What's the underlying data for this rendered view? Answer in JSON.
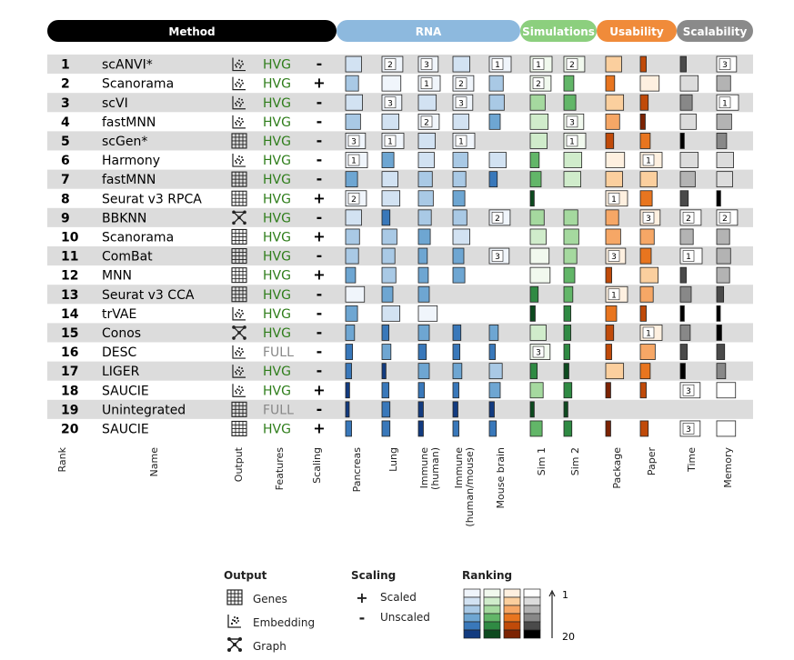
{
  "chart_data": {
    "type": "heatmap",
    "title": "",
    "headers": {
      "method": "Method",
      "rna": "RNA",
      "simulations": "Simulations",
      "usability": "Usability",
      "scalability": "Scalability"
    },
    "header_colors": {
      "method": "#000000",
      "rna": "#8db9de",
      "simulations": "#8ccf7e",
      "usability": "#f08b3a",
      "scalability": "#8a8a8a"
    },
    "column_labels": {
      "rank": "Rank",
      "name": "Name",
      "output": "Output",
      "features": "Features",
      "scaling": "Scaling",
      "pancreas": "Pancreas",
      "lung": "Lung",
      "immune_human": [
        "Immune",
        "(human)"
      ],
      "immune_hm": [
        "Immune",
        "(human/mouse)"
      ],
      "mouse_brain": "Mouse brain",
      "sim1": "Sim 1",
      "sim2": "Sim 2",
      "package": "Package",
      "paper": "Paper",
      "time": "Time",
      "memory": "Memory"
    },
    "palettes": {
      "blue": [
        "#f0f5fb",
        "#d2e2f2",
        "#a9c9e5",
        "#6ea6d2",
        "#3978ba",
        "#123b80"
      ],
      "green": [
        "#f1f9ee",
        "#d0eccb",
        "#a5d99f",
        "#62b668",
        "#2f8a43",
        "#0d4a1f"
      ],
      "orange": [
        "#fef0e0",
        "#fbcf9e",
        "#f6a766",
        "#e8751f",
        "#c04a09",
        "#7c2303"
      ],
      "gray": [
        "#ffffff",
        "#dcdcdc",
        "#b3b3b3",
        "#888888",
        "#4a4a4a",
        "#000000"
      ]
    },
    "columns": [
      {
        "key": "pancreas",
        "pal": "blue"
      },
      {
        "key": "lung",
        "pal": "blue"
      },
      {
        "key": "immune_human",
        "pal": "blue"
      },
      {
        "key": "immune_hm",
        "pal": "blue"
      },
      {
        "key": "mouse_brain",
        "pal": "blue"
      },
      {
        "key": "sim1",
        "pal": "green"
      },
      {
        "key": "sim2",
        "pal": "green"
      },
      {
        "key": "package",
        "pal": "orange"
      },
      {
        "key": "paper",
        "pal": "orange"
      },
      {
        "key": "time",
        "pal": "gray"
      },
      {
        "key": "memory",
        "pal": "gray"
      }
    ],
    "rows": [
      {
        "rank": "1",
        "name": "scANVI*",
        "output": "embedding",
        "features": "HVG",
        "scaling": "-",
        "cells": [
          [
            7,
            null
          ],
          [
            2,
            "2"
          ],
          [
            3,
            "3"
          ],
          [
            6,
            null
          ],
          [
            1,
            "1"
          ],
          [
            1,
            "1"
          ],
          [
            2,
            "2"
          ],
          [
            7,
            null
          ],
          [
            17,
            null
          ],
          [
            17,
            null
          ],
          [
            3,
            "3"
          ]
        ]
      },
      {
        "rank": "2",
        "name": "Scanorama",
        "output": "embedding",
        "features": "HVG",
        "scaling": "+",
        "cells": [
          [
            10,
            null
          ],
          [
            4,
            null
          ],
          [
            1,
            "1"
          ],
          [
            2,
            "2"
          ],
          [
            9,
            null
          ],
          [
            2,
            "2"
          ],
          [
            13,
            null
          ],
          [
            14,
            null
          ],
          [
            4,
            null
          ],
          [
            5,
            null
          ],
          [
            9,
            null
          ]
        ]
      },
      {
        "rank": "3",
        "name": "scVI",
        "output": "embedding",
        "features": "HVG",
        "scaling": "-",
        "cells": [
          [
            6,
            null
          ],
          [
            3,
            "3"
          ],
          [
            5,
            null
          ],
          [
            3,
            "3"
          ],
          [
            8,
            null
          ],
          [
            8,
            null
          ],
          [
            11,
            null
          ],
          [
            5,
            null
          ],
          [
            15,
            null
          ],
          [
            11,
            null
          ],
          [
            1,
            "1"
          ]
        ]
      },
      {
        "rank": "4",
        "name": "fastMNN",
        "output": "embedding",
        "features": "HVG",
        "scaling": "-",
        "cells": [
          [
            8,
            null
          ],
          [
            6,
            null
          ],
          [
            2,
            "2"
          ],
          [
            7,
            null
          ],
          [
            12,
            null
          ],
          [
            5,
            null
          ],
          [
            3,
            "3"
          ],
          [
            9,
            null
          ],
          [
            18,
            null
          ],
          [
            7,
            null
          ],
          [
            8,
            null
          ]
        ]
      },
      {
        "rank": "5",
        "name": "scGen*",
        "output": "genes",
        "features": "HVG",
        "scaling": "-",
        "cells": [
          [
            3,
            "3"
          ],
          [
            1,
            "1"
          ],
          [
            6,
            null
          ],
          [
            1,
            "1"
          ],
          null,
          [
            6,
            null
          ],
          [
            1,
            "1"
          ],
          [
            15,
            null
          ],
          [
            13,
            null
          ],
          [
            19,
            null
          ],
          [
            13,
            null
          ]
        ]
      },
      {
        "rank": "6",
        "name": "Harmony",
        "output": "embedding",
        "features": "HVG",
        "scaling": "-",
        "cells": [
          [
            1,
            "1"
          ],
          [
            11,
            null
          ],
          [
            7,
            null
          ],
          [
            8,
            null
          ],
          [
            6,
            null
          ],
          [
            14,
            null
          ],
          [
            5,
            null
          ],
          [
            4,
            null
          ],
          [
            1,
            "1"
          ],
          [
            5,
            null
          ],
          [
            6,
            null
          ]
        ]
      },
      {
        "rank": "7",
        "name": "fastMNN",
        "output": "genes",
        "features": "HVG",
        "scaling": "-",
        "cells": [
          [
            11,
            null
          ],
          [
            7,
            null
          ],
          [
            9,
            null
          ],
          [
            10,
            null
          ],
          [
            15,
            null
          ],
          [
            12,
            null
          ],
          [
            6,
            null
          ],
          [
            6,
            null
          ],
          [
            6,
            null
          ],
          [
            8,
            null
          ],
          [
            7,
            null
          ]
        ]
      },
      {
        "rank": "8",
        "name": "Seurat v3 RPCA",
        "output": "genes",
        "features": "HVG",
        "scaling": "+",
        "cells": [
          [
            2,
            "2"
          ],
          [
            5,
            null
          ],
          [
            8,
            null
          ],
          [
            11,
            null
          ],
          null,
          [
            19,
            null
          ],
          null,
          [
            1,
            "1"
          ],
          [
            11,
            null
          ],
          [
            15,
            null
          ],
          [
            19,
            null
          ]
        ]
      },
      {
        "rank": "9",
        "name": "BBKNN",
        "output": "graph",
        "features": "HVG",
        "scaling": "-",
        "cells": [
          [
            7,
            null
          ],
          [
            15,
            null
          ],
          [
            10,
            null
          ],
          [
            9,
            null
          ],
          [
            2,
            "2"
          ],
          [
            9,
            null
          ],
          [
            9,
            null
          ],
          [
            10,
            null
          ],
          [
            3,
            "3"
          ],
          [
            2,
            "2"
          ],
          [
            2,
            "2"
          ]
        ]
      },
      {
        "rank": "10",
        "name": "Scanorama",
        "output": "genes",
        "features": "HVG",
        "scaling": "+",
        "cells": [
          [
            9,
            null
          ],
          [
            8,
            null
          ],
          [
            11,
            null
          ],
          [
            6,
            null
          ],
          null,
          [
            7,
            null
          ],
          [
            8,
            null
          ],
          [
            8,
            null
          ],
          [
            9,
            null
          ],
          [
            10,
            null
          ],
          [
            10,
            null
          ]
        ]
      },
      {
        "rank": "11",
        "name": "ComBat",
        "output": "genes",
        "features": "HVG",
        "scaling": "-",
        "cells": [
          [
            10,
            null
          ],
          [
            10,
            null
          ],
          [
            14,
            null
          ],
          [
            12,
            null
          ],
          [
            3,
            "3"
          ],
          [
            4,
            null
          ],
          [
            10,
            null
          ],
          [
            3,
            "3"
          ],
          [
            12,
            null
          ],
          [
            1,
            "1"
          ],
          [
            9,
            null
          ]
        ]
      },
      {
        "rank": "12",
        "name": "MNN",
        "output": "genes",
        "features": "HVG",
        "scaling": "+",
        "cells": [
          [
            13,
            null
          ],
          [
            9,
            null
          ],
          [
            13,
            null
          ],
          [
            11,
            null
          ],
          null,
          [
            3,
            null
          ],
          [
            12,
            null
          ],
          [
            17,
            null
          ],
          [
            5,
            null
          ],
          [
            17,
            null
          ],
          [
            10,
            null
          ]
        ]
      },
      {
        "rank": "13",
        "name": "Seurat v3 CCA",
        "output": "genes",
        "features": "HVG",
        "scaling": "-",
        "cells": [
          [
            4,
            null
          ],
          [
            12,
            null
          ],
          [
            12,
            null
          ],
          null,
          null,
          [
            15,
            null
          ],
          [
            14,
            null
          ],
          [
            1,
            "1"
          ],
          [
            10,
            null
          ],
          [
            12,
            null
          ],
          [
            16,
            null
          ]
        ]
      },
      {
        "rank": "14",
        "name": "trVAE",
        "output": "embedding",
        "features": "HVG",
        "scaling": "-",
        "cells": [
          [
            11,
            null
          ],
          [
            5,
            null
          ],
          [
            4,
            null
          ],
          null,
          null,
          [
            18,
            null
          ],
          [
            16,
            null
          ],
          [
            12,
            null
          ],
          [
            17,
            null
          ],
          [
            19,
            null
          ],
          [
            20,
            null
          ]
        ]
      },
      {
        "rank": "15",
        "name": "Conos",
        "output": "graph",
        "features": "HVG",
        "scaling": "-",
        "cells": [
          [
            14,
            null
          ],
          [
            16,
            null
          ],
          [
            12,
            null
          ],
          [
            15,
            null
          ],
          [
            14,
            null
          ],
          [
            7,
            null
          ],
          [
            16,
            null
          ],
          [
            15,
            null
          ],
          [
            1,
            "1"
          ],
          [
            13,
            null
          ],
          [
            18,
            null
          ]
        ]
      },
      {
        "rank": "16",
        "name": "DESC",
        "output": "embedding",
        "features": "FULL",
        "scaling": "-",
        "cells": [
          [
            16,
            null
          ],
          [
            14,
            null
          ],
          [
            15,
            null
          ],
          [
            16,
            null
          ],
          [
            17,
            null
          ],
          [
            3,
            "3"
          ],
          [
            17,
            null
          ],
          [
            17,
            null
          ],
          [
            8,
            null
          ],
          [
            16,
            null
          ],
          [
            15,
            null
          ]
        ]
      },
      {
        "rank": "17",
        "name": "LIGER",
        "output": "embedding",
        "features": "HVG",
        "scaling": "-",
        "cells": [
          [
            17,
            null
          ],
          [
            19,
            null
          ],
          [
            12,
            null
          ],
          [
            14,
            null
          ],
          [
            10,
            null
          ],
          [
            16,
            null
          ],
          [
            18,
            null
          ],
          [
            5,
            null
          ],
          [
            13,
            null
          ],
          [
            18,
            null
          ],
          [
            14,
            null
          ]
        ]
      },
      {
        "rank": "18",
        "name": "SAUCIE",
        "output": "embedding",
        "features": "HVG",
        "scaling": "+",
        "cells": [
          [
            19,
            null
          ],
          [
            16,
            null
          ],
          [
            17,
            null
          ],
          [
            17,
            null
          ],
          [
            12,
            null
          ],
          [
            10,
            null
          ],
          [
            15,
            null
          ],
          [
            18,
            null
          ],
          [
            17,
            null
          ],
          [
            3,
            "3"
          ],
          [
            4,
            null
          ]
        ]
      },
      {
        "rank": "19",
        "name": "Unintegrated",
        "output": "genes",
        "features": "FULL",
        "scaling": "-",
        "cells": [
          [
            20,
            null
          ],
          [
            15,
            null
          ],
          [
            18,
            null
          ],
          [
            18,
            null
          ],
          [
            18,
            null
          ],
          [
            19,
            null
          ],
          [
            19,
            null
          ],
          null,
          null,
          null,
          null
        ]
      },
      {
        "rank": "20",
        "name": "SAUCIE",
        "output": "genes",
        "features": "HVG",
        "scaling": "+",
        "cells": [
          [
            17,
            null
          ],
          [
            15,
            null
          ],
          [
            18,
            null
          ],
          [
            17,
            null
          ],
          [
            16,
            null
          ],
          [
            11,
            null
          ],
          [
            15,
            null
          ],
          [
            18,
            null
          ],
          [
            15,
            null
          ],
          [
            3,
            "3"
          ],
          [
            4,
            null
          ]
        ]
      }
    ]
  },
  "legend": {
    "output_title": "Output",
    "output_items": [
      {
        "icon": "genes-icon",
        "label": "Genes"
      },
      {
        "icon": "embedding-icon",
        "label": "Embedding"
      },
      {
        "icon": "graph-icon",
        "label": "Graph"
      }
    ],
    "scaling_title": "Scaling",
    "scaling_items": [
      {
        "symbol": "+",
        "label": "Scaled"
      },
      {
        "symbol": "-",
        "label": "Unscaled"
      }
    ],
    "ranking_title": "Ranking",
    "ranking_top": "1",
    "ranking_bottom": "20"
  }
}
